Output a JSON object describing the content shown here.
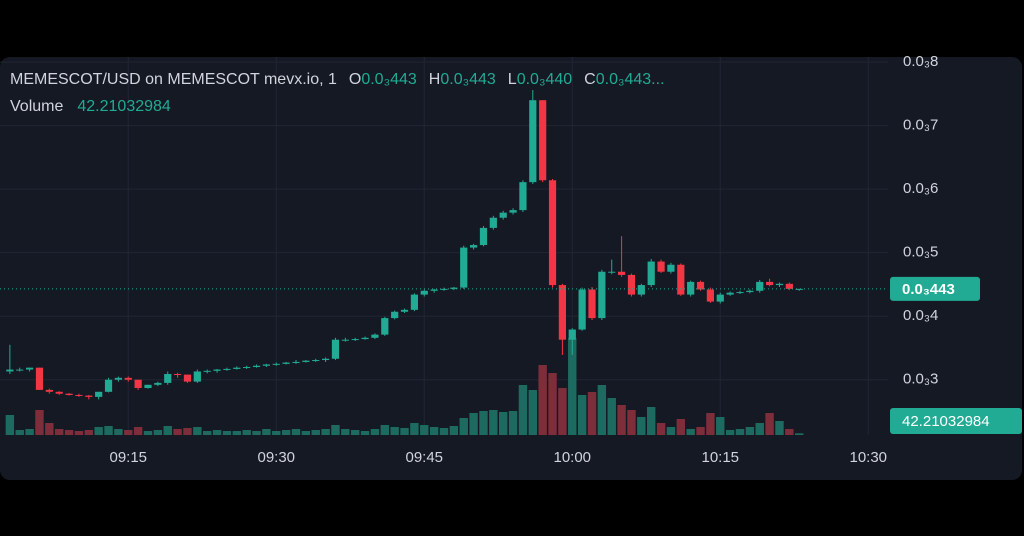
{
  "chart_data": {
    "type": "candlestick",
    "title": "MEMESCOT/USD on MEMESCOT mevx.io, 1",
    "header": {
      "open_name": "O",
      "open": {
        "value": 0.000443,
        "label": "0.0₃443"
      },
      "high_name": "H",
      "high": {
        "value": 0.000443,
        "label": "0.0₃443"
      },
      "low_name": "L",
      "low": {
        "value": 0.00044,
        "label": "0.0₃440"
      },
      "close_name": "C",
      "close": {
        "value": 0.000443,
        "label": "0.0₃443..."
      },
      "volume_name": "Volume"
    },
    "x": [
      "09:03",
      "09:04",
      "09:05",
      "09:06",
      "09:07",
      "09:08",
      "09:09",
      "09:10",
      "09:11",
      "09:12",
      "09:13",
      "09:14",
      "09:15",
      "09:16",
      "09:17",
      "09:18",
      "09:19",
      "09:20",
      "09:21",
      "09:22",
      "09:23",
      "09:24",
      "09:25",
      "09:26",
      "09:27",
      "09:28",
      "09:29",
      "09:30",
      "09:31",
      "09:32",
      "09:33",
      "09:34",
      "09:35",
      "09:36",
      "09:37",
      "09:38",
      "09:39",
      "09:40",
      "09:41",
      "09:42",
      "09:43",
      "09:44",
      "09:45",
      "09:46",
      "09:47",
      "09:48",
      "09:49",
      "09:50",
      "09:51",
      "09:52",
      "09:53",
      "09:54",
      "09:55",
      "09:56",
      "09:57",
      "09:58",
      "09:59",
      "10:00",
      "10:01",
      "10:02",
      "10:03",
      "10:04",
      "10:05",
      "10:06",
      "10:07",
      "10:08",
      "10:09",
      "10:10",
      "10:11",
      "10:12",
      "10:13",
      "10:14",
      "10:15",
      "10:16",
      "10:17",
      "10:18",
      "10:19",
      "10:20",
      "10:21",
      "10:22",
      "10:23"
    ],
    "open": [
      0.000313,
      0.000316,
      0.000316,
      0.000319,
      0.000284,
      0.000281,
      0.000278,
      0.000276,
      0.000275,
      0.000273,
      0.000281,
      0.0003,
      0.000303,
      0.0003,
      0.000287,
      0.000292,
      0.000295,
      0.000309,
      0.000308,
      0.000297,
      0.000313,
      0.000314,
      0.000316,
      0.000317,
      0.000319,
      0.00032,
      0.000322,
      0.000324,
      0.000325,
      0.000327,
      0.000328,
      0.00033,
      0.000331,
      0.000333,
      0.000363,
      0.000363,
      0.000364,
      0.000366,
      0.000371,
      0.000397,
      0.000407,
      0.00041,
      0.000434,
      0.00044,
      0.000442,
      0.000443,
      0.000445,
      0.000508,
      0.000512,
      0.000539,
      0.000555,
      0.000563,
      0.000567,
      0.000611,
      0.00074,
      0.000614,
      0.000449,
      0.000363,
      0.000379,
      0.000442,
      0.000397,
      0.00047,
      0.00047,
      0.000465,
      0.000434,
      0.000449,
      0.000486,
      0.00047,
      0.000481,
      0.000434,
      0.000454,
      0.000442,
      0.000423,
      0.000434,
      0.000437,
      0.000438,
      0.00044,
      0.000454,
      0.000449,
      0.000451,
      0.000443
    ],
    "high": [
      0.000355,
      0.000319,
      0.000319,
      0.000319,
      0.000286,
      0.000282,
      0.000279,
      0.000278,
      0.000276,
      0.000281,
      0.000303,
      0.000305,
      0.000305,
      0.0003,
      0.000292,
      0.000297,
      0.000313,
      0.000311,
      0.000308,
      0.000316,
      0.000316,
      0.000317,
      0.000319,
      0.000321,
      0.000322,
      0.000324,
      0.000325,
      0.000327,
      0.000328,
      0.000331,
      0.000331,
      0.000333,
      0.000335,
      0.000366,
      0.000366,
      0.000366,
      0.000368,
      0.000373,
      0.000399,
      0.000409,
      0.000412,
      0.000436,
      0.000442,
      0.000443,
      0.000445,
      0.000446,
      0.000511,
      0.000514,
      0.000542,
      0.000558,
      0.000566,
      0.00057,
      0.000614,
      0.000756,
      0.00074,
      0.000616,
      0.000451,
      0.000381,
      0.000445,
      0.000446,
      0.000473,
      0.000489,
      0.000526,
      0.000467,
      0.000451,
      0.00049,
      0.000489,
      0.000484,
      0.000483,
      0.000456,
      0.000456,
      0.000445,
      0.000437,
      0.000439,
      0.00044,
      0.000442,
      0.000457,
      0.000459,
      0.000453,
      0.000453,
      0.000443
    ],
    "low": [
      0.000309,
      0.000313,
      0.000313,
      0.000284,
      0.000278,
      0.000276,
      0.000275,
      0.000273,
      0.000269,
      0.000269,
      0.00028,
      0.000297,
      0.000297,
      0.000284,
      0.000286,
      0.00029,
      0.000292,
      0.000303,
      0.000295,
      0.000295,
      0.00031,
      0.000311,
      0.000314,
      0.000316,
      0.000317,
      0.000319,
      0.00032,
      0.000322,
      0.000324,
      0.000325,
      0.000327,
      0.000328,
      0.000328,
      0.000331,
      0.00036,
      0.000361,
      0.000363,
      0.000364,
      0.000369,
      0.000395,
      0.000405,
      0.000408,
      0.000431,
      0.000437,
      0.00044,
      0.000441,
      0.000443,
      0.000505,
      0.00051,
      0.000536,
      0.000552,
      0.00056,
      0.000564,
      0.000608,
      0.000611,
      0.000445,
      0.000339,
      0.000339,
      0.000377,
      0.000394,
      0.000394,
      0.000466,
      0.000462,
      0.000431,
      0.000431,
      0.000446,
      0.000468,
      0.000467,
      0.000432,
      0.000431,
      0.00044,
      0.000421,
      0.00042,
      0.000432,
      0.000435,
      0.000436,
      0.000437,
      0.000447,
      0.000446,
      0.000441,
      0.00044
    ],
    "close": [
      0.000316,
      0.000316,
      0.000319,
      0.000284,
      0.000281,
      0.000278,
      0.000276,
      0.000275,
      0.000273,
      0.000281,
      0.0003,
      0.000303,
      0.0003,
      0.000287,
      0.000292,
      0.000295,
      0.000309,
      0.000308,
      0.000297,
      0.000313,
      0.000314,
      0.000316,
      0.000317,
      0.000319,
      0.00032,
      0.000322,
      0.000324,
      0.000325,
      0.000327,
      0.000328,
      0.00033,
      0.000331,
      0.000333,
      0.000363,
      0.000363,
      0.000364,
      0.000366,
      0.000371,
      0.000397,
      0.000407,
      0.00041,
      0.000434,
      0.00044,
      0.000442,
      0.000443,
      0.000445,
      0.000508,
      0.000512,
      0.000539,
      0.000555,
      0.000563,
      0.000567,
      0.000611,
      0.00074,
      0.000614,
      0.000449,
      0.000363,
      0.000379,
      0.000442,
      0.000397,
      0.00047,
      0.00047,
      0.000465,
      0.000434,
      0.000449,
      0.000486,
      0.00047,
      0.000481,
      0.000434,
      0.000454,
      0.000442,
      0.000423,
      0.000434,
      0.000437,
      0.000438,
      0.00044,
      0.000454,
      0.000449,
      0.000451,
      0.000443,
      0.000443
    ],
    "volume": [
      500,
      125,
      150,
      625,
      300,
      150,
      125,
      100,
      125,
      200,
      225,
      150,
      125,
      200,
      100,
      125,
      225,
      150,
      175,
      200,
      100,
      125,
      100,
      100,
      125,
      100,
      150,
      100,
      125,
      150,
      100,
      125,
      150,
      250,
      150,
      125,
      100,
      150,
      250,
      200,
      175,
      300,
      250,
      200,
      175,
      225,
      425,
      550,
      600,
      625,
      575,
      600,
      1250,
      1125,
      1750,
      1550,
      1175,
      2425,
      1000,
      1075,
      1250,
      925,
      750,
      625,
      450,
      700,
      300,
      200,
      400,
      150,
      200,
      550,
      450,
      125,
      150,
      200,
      300,
      550,
      350,
      150,
      42.21032984
    ],
    "up_color": "#22ab94",
    "down_color": "#f23645",
    "volume_up_color": "#1d6b60",
    "volume_down_color": "#7d2e3a",
    "ylim": [
      0.000213,
      0.000808
    ],
    "yticks": [
      {
        "value": 0.0003,
        "label": "0.0₃3"
      },
      {
        "value": 0.0004,
        "label": "0.0₃4"
      },
      {
        "value": 0.0005,
        "label": "0.0₃5"
      },
      {
        "value": 0.0006,
        "label": "0.0₃6"
      },
      {
        "value": 0.0007,
        "label": "0.0₃7"
      },
      {
        "value": 0.0008,
        "label": "0.0₃8"
      }
    ],
    "xlim": [
      "09:02",
      "10:32"
    ],
    "xticks": [
      "09:15",
      "09:30",
      "09:45",
      "10:00",
      "10:15",
      "10:30"
    ],
    "last_price": {
      "value": 0.000443,
      "label": "0.0₃443"
    },
    "grid": true
  }
}
